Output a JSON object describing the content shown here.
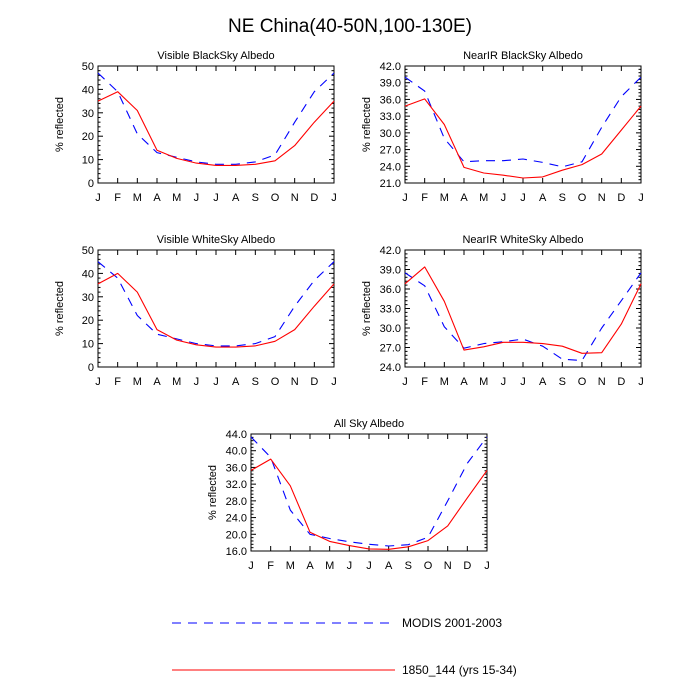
{
  "title": "NE China(40-50N,100-130E)",
  "months": [
    "J",
    "F",
    "M",
    "A",
    "M",
    "J",
    "J",
    "A",
    "S",
    "O",
    "N",
    "D",
    "J"
  ],
  "legend": [
    {
      "label": "MODIS 2001-2003",
      "color": "#0000ff",
      "dash": true
    },
    {
      "label": "1850_144 (yrs 15-34)",
      "color": "#ff0000",
      "dash": false
    }
  ],
  "chart_data": [
    {
      "type": "line",
      "title": "Visible BlackSky Albedo",
      "ylabel": "% reflected",
      "ylim": [
        0,
        50
      ],
      "yticks": [
        "0",
        "10",
        "20",
        "30",
        "40",
        "50"
      ],
      "categories": [
        "J",
        "F",
        "M",
        "A",
        "M",
        "J",
        "J",
        "A",
        "S",
        "O",
        "N",
        "D",
        "J"
      ],
      "series": [
        {
          "name": "MODIS 2001-2003",
          "values": [
            47,
            39,
            21,
            13,
            11,
            9,
            8,
            8,
            9,
            12,
            26,
            39,
            47
          ]
        },
        {
          "name": "1850_144 (yrs 15-34)",
          "values": [
            35,
            39,
            31,
            14,
            10.5,
            8.5,
            7.5,
            7.5,
            8,
            9.5,
            16,
            26,
            35
          ]
        }
      ]
    },
    {
      "type": "line",
      "title": "NearIR BlackSky Albedo",
      "ylabel": "% reflected",
      "ylim": [
        21,
        42
      ],
      "yticks": [
        "21.0",
        "24.0",
        "27.0",
        "30.0",
        "33.0",
        "36.0",
        "39.0",
        "42.0"
      ],
      "categories": [
        "J",
        "F",
        "M",
        "A",
        "M",
        "J",
        "J",
        "A",
        "S",
        "O",
        "N",
        "D",
        "J"
      ],
      "series": [
        {
          "name": "MODIS 2001-2003",
          "values": [
            40,
            37.5,
            29,
            24.8,
            25,
            25,
            25.3,
            24.7,
            23.9,
            24.8,
            31,
            36.5,
            40
          ]
        },
        {
          "name": "1850_144 (yrs 15-34)",
          "values": [
            34.8,
            36.1,
            31.5,
            23.8,
            22.8,
            22.4,
            21.9,
            22.1,
            23.3,
            24.3,
            26.2,
            30.5,
            34.8
          ]
        }
      ]
    },
    {
      "type": "line",
      "title": "Visible WhiteSky Albedo",
      "ylabel": "% reflected",
      "ylim": [
        0,
        50
      ],
      "yticks": [
        "0",
        "10",
        "20",
        "30",
        "40",
        "50"
      ],
      "categories": [
        "J",
        "F",
        "M",
        "A",
        "M",
        "J",
        "J",
        "A",
        "S",
        "O",
        "N",
        "D",
        "J"
      ],
      "series": [
        {
          "name": "MODIS 2001-2003",
          "values": [
            45,
            38,
            22,
            14,
            12,
            10,
            9,
            9,
            10,
            13,
            26,
            37,
            45
          ]
        },
        {
          "name": "1850_144 (yrs 15-34)",
          "values": [
            35.5,
            40,
            32,
            16,
            11.5,
            9.5,
            8.5,
            8.5,
            9,
            11,
            16,
            26,
            35.5
          ]
        }
      ]
    },
    {
      "type": "line",
      "title": "NearIR WhiteSky Albedo",
      "ylabel": "% reflected",
      "ylim": [
        24,
        42
      ],
      "yticks": [
        "24.0",
        "27.0",
        "30.0",
        "33.0",
        "36.0",
        "39.0",
        "42.0"
      ],
      "categories": [
        "J",
        "F",
        "M",
        "A",
        "M",
        "J",
        "J",
        "A",
        "S",
        "O",
        "N",
        "D",
        "J"
      ],
      "series": [
        {
          "name": "MODIS 2001-2003",
          "values": [
            38.5,
            36.5,
            30.2,
            26.9,
            27.6,
            27.9,
            28.3,
            27.2,
            25.2,
            25,
            30,
            34.2,
            38.5
          ]
        },
        {
          "name": "1850_144 (yrs 15-34)",
          "values": [
            36.8,
            39.4,
            34.1,
            26.6,
            27.1,
            27.8,
            27.8,
            27.6,
            27.2,
            26.1,
            26.2,
            30.6,
            36.8
          ]
        }
      ]
    },
    {
      "type": "line",
      "title": "All Sky Albedo",
      "ylabel": "% reflected",
      "ylim": [
        16,
        44
      ],
      "yticks": [
        "16.0",
        "20.0",
        "24.0",
        "28.0",
        "32.0",
        "36.0",
        "40.0",
        "44.0"
      ],
      "categories": [
        "J",
        "F",
        "M",
        "A",
        "M",
        "J",
        "J",
        "A",
        "S",
        "O",
        "N",
        "D",
        "J"
      ],
      "series": [
        {
          "name": "MODIS 2001-2003",
          "values": [
            43.3,
            38.4,
            25.8,
            20,
            19,
            18.2,
            17.6,
            17.2,
            17.5,
            19.3,
            28,
            37,
            43.3
          ]
        },
        {
          "name": "1850_144 (yrs 15-34)",
          "values": [
            35.3,
            38,
            31.6,
            20.5,
            18.3,
            17.3,
            16.5,
            16.4,
            17,
            18.5,
            22,
            28.7,
            35.3
          ]
        }
      ]
    }
  ]
}
